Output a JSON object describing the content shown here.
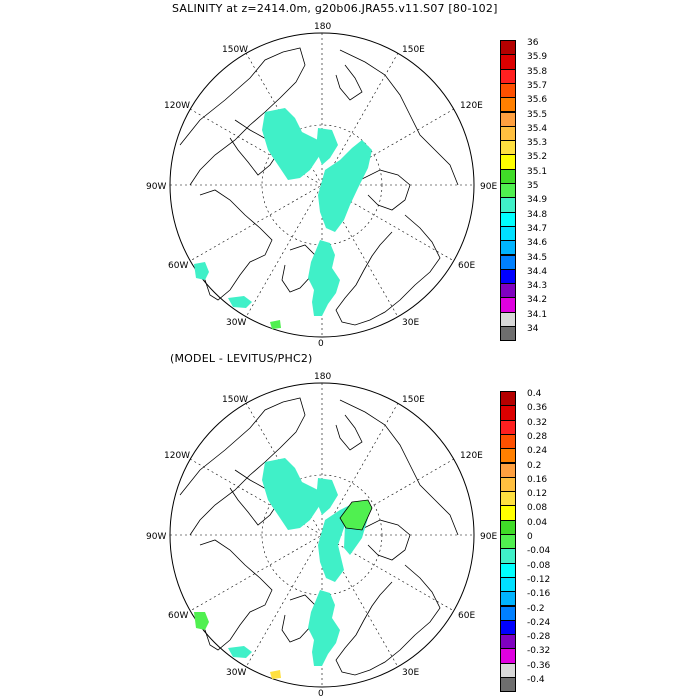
{
  "figure": {
    "title_top": "SALINITY at z=2414.0m, g20b06.JRA55.v11.S07 [80-102]",
    "title_bottom": "(MODEL - LEVITUS/PHC2)"
  },
  "map_labels": {
    "top": "180",
    "bottom": "0",
    "left": "90W",
    "right": "90E",
    "upper_left_outer": "150W",
    "upper_left_inner": "120W",
    "upper_right_outer": "150E",
    "upper_right_inner": "120E",
    "lower_left_inner": "60W",
    "lower_left_outer": "30W",
    "lower_right_inner": "60E",
    "lower_right_outer": "30E"
  },
  "colorbar_top": {
    "labels": [
      "36",
      "35.9",
      "35.8",
      "35.7",
      "35.6",
      "35.5",
      "35.4",
      "35.3",
      "35.2",
      "35.1",
      "35",
      "34.9",
      "34.8",
      "34.7",
      "34.6",
      "34.5",
      "34.4",
      "34.3",
      "34.2",
      "34.1",
      "34"
    ],
    "colors": [
      "#b40000",
      "#dc0000",
      "#ff2020",
      "#ff5000",
      "#ff8000",
      "#ffa040",
      "#ffc040",
      "#ffe040",
      "#ffff00",
      "#40dc28",
      "#50f050",
      "#40f0c8",
      "#00ffff",
      "#00e0ff",
      "#00b4ff",
      "#0080ff",
      "#0000ff",
      "#8000c0",
      "#e000e0",
      "#d8d8d8",
      "#6e6e6e"
    ]
  },
  "colorbar_bottom": {
    "labels": [
      "0.4",
      "0.36",
      "0.32",
      "0.28",
      "0.24",
      "0.2",
      "0.16",
      "0.12",
      "0.08",
      "0.04",
      "0",
      "-0.04",
      "-0.08",
      "-0.12",
      "-0.16",
      "-0.2",
      "-0.24",
      "-0.28",
      "-0.32",
      "-0.36",
      "-0.4"
    ],
    "colors": [
      "#b40000",
      "#dc0000",
      "#ff2020",
      "#ff5000",
      "#ff8000",
      "#ffa040",
      "#ffc040",
      "#ffe040",
      "#ffff00",
      "#40dc28",
      "#50f050",
      "#40f0c8",
      "#00ffff",
      "#00e0ff",
      "#00b4ff",
      "#0080ff",
      "#0000ff",
      "#8000c0",
      "#e000e0",
      "#d8d8d8",
      "#6e6e6e"
    ]
  },
  "field_colors": {
    "main": "#40f0c8",
    "positive": "#50f050",
    "warm": "#ffe040",
    "coast": "#000000"
  }
}
